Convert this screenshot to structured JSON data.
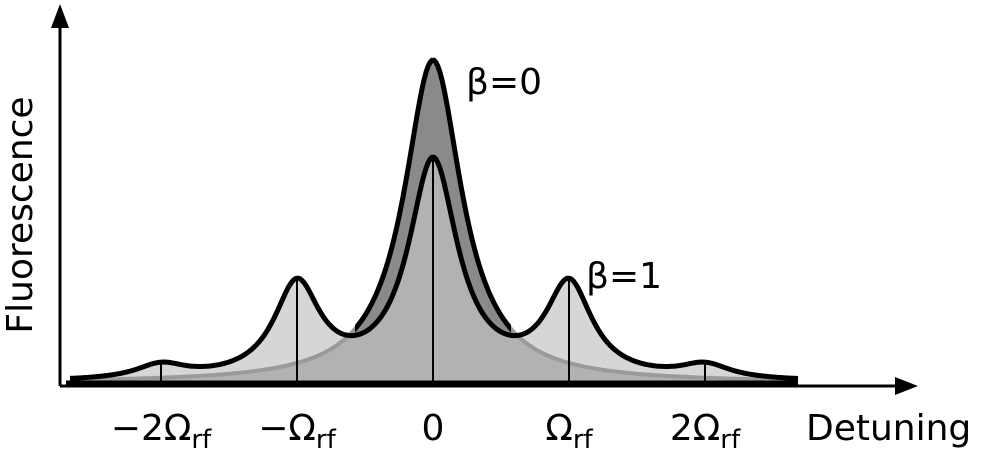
{
  "axes": {
    "y_label": "Fluorescence",
    "x_label": "Detuning"
  },
  "x_ticks": [
    {
      "text": "−2Ω",
      "subscript": "rf"
    },
    {
      "text": "−Ω",
      "subscript": "rf"
    },
    {
      "text": "0"
    },
    {
      "text": "Ω",
      "subscript": "rf"
    },
    {
      "text": "2Ω",
      "subscript": "rf"
    }
  ],
  "curves": [
    {
      "label": "β=0"
    },
    {
      "label": "β=1"
    }
  ]
}
